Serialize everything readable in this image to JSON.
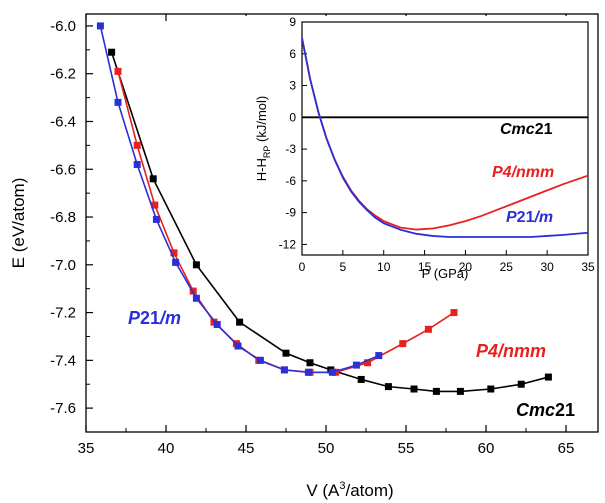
{
  "chart_data": [
    {
      "type": "line",
      "title": "",
      "xlabel": "V (A",
      "xlabel_sup": "3",
      "xlabel_tail": "/atom)",
      "ylabel": "E (eV/atom)",
      "xlim": [
        35,
        67
      ],
      "ylim": [
        -7.7,
        -5.95
      ],
      "xticks": [
        35,
        40,
        45,
        50,
        55,
        60,
        65
      ],
      "yticks": [
        -6.0,
        -6.2,
        -6.4,
        -6.6,
        -6.8,
        -7.0,
        -7.2,
        -7.4,
        -7.6
      ],
      "ytick_labels": [
        "-6.0",
        "-6.2",
        "-6.4",
        "-6.6",
        "-6.8",
        "-7.0",
        "-7.2",
        "-7.4",
        "-7.6"
      ],
      "series": [
        {
          "name": "Cmc21",
          "label_parts": [
            "Cmc",
            "21"
          ],
          "color": "#000000",
          "x": [
            36.6,
            39.2,
            41.9,
            44.6,
            47.5,
            49.0,
            50.3,
            52.2,
            53.9,
            55.5,
            56.9,
            58.4,
            60.3,
            62.2,
            63.9
          ],
          "y": [
            -6.11,
            -6.64,
            -7.0,
            -7.24,
            -7.37,
            -7.41,
            -7.44,
            -7.48,
            -7.51,
            -7.52,
            -7.53,
            -7.53,
            -7.52,
            -7.5,
            -7.47
          ]
        },
        {
          "name": "P4/nmm",
          "label_parts": [
            "P4/nmm"
          ],
          "color": "#e8211f",
          "x": [
            37.0,
            38.2,
            39.3,
            40.5,
            41.7,
            43.0,
            44.4,
            45.8,
            47.4,
            49.0,
            50.6,
            52.6,
            54.8,
            56.4,
            58.0
          ],
          "y": [
            -6.19,
            -6.5,
            -6.75,
            -6.95,
            -7.11,
            -7.24,
            -7.33,
            -7.4,
            -7.44,
            -7.45,
            -7.45,
            -7.41,
            -7.33,
            -7.27,
            -7.2
          ]
        },
        {
          "name": "P21/m",
          "label_parts": [
            "P",
            "21",
            "/m"
          ],
          "color": "#2b2fd8",
          "x": [
            35.9,
            37.0,
            38.2,
            39.4,
            40.6,
            41.9,
            43.2,
            44.5,
            45.9,
            47.4,
            48.9,
            50.4,
            51.9,
            53.3
          ],
          "y": [
            -6.0,
            -6.32,
            -6.58,
            -6.81,
            -6.99,
            -7.14,
            -7.25,
            -7.34,
            -7.4,
            -7.44,
            -7.45,
            -7.45,
            -7.42,
            -7.38
          ]
        }
      ]
    },
    {
      "type": "line",
      "title": "",
      "xlabel": "P (GPa)",
      "ylabel": "H-H",
      "ylabel_sub": "RP",
      "ylabel_tail": " (kJ/mol)",
      "xlim": [
        0,
        35
      ],
      "ylim": [
        -13,
        9
      ],
      "xticks": [
        0,
        5,
        10,
        15,
        20,
        25,
        30,
        35
      ],
      "yticks": [
        9,
        6,
        3,
        0,
        -3,
        -6,
        -9,
        -12
      ],
      "series": [
        {
          "name": "Cmc21",
          "label_parts": [
            "Cmc",
            "21"
          ],
          "color": "#000000",
          "x": [
            0,
            35
          ],
          "y": [
            0,
            0
          ]
        },
        {
          "name": "P4/nmm",
          "label_parts": [
            "P4/nmm"
          ],
          "color": "#e8211f",
          "x": [
            0,
            1,
            2,
            3,
            4,
            5,
            6,
            7,
            8,
            9,
            10,
            12,
            14,
            16,
            18,
            20,
            22,
            24,
            26,
            28,
            30,
            32,
            35
          ],
          "y": [
            7.5,
            3.6,
            0.5,
            -2.0,
            -4.0,
            -5.6,
            -6.9,
            -7.9,
            -8.7,
            -9.3,
            -9.8,
            -10.4,
            -10.6,
            -10.5,
            -10.2,
            -9.8,
            -9.3,
            -8.7,
            -8.1,
            -7.5,
            -6.9,
            -6.3,
            -5.5
          ]
        },
        {
          "name": "P21/m",
          "label_parts": [
            "P",
            "21",
            "/m"
          ],
          "color": "#2b2fd8",
          "x": [
            0,
            1,
            2,
            3,
            4,
            5,
            6,
            7,
            8,
            9,
            10,
            12,
            14,
            16,
            18,
            20,
            22,
            24,
            26,
            28,
            30,
            32,
            35
          ],
          "y": [
            7.5,
            3.6,
            0.5,
            -2.0,
            -4.0,
            -5.7,
            -7.0,
            -8.0,
            -8.8,
            -9.5,
            -10.0,
            -10.6,
            -11.0,
            -11.2,
            -11.3,
            -11.3,
            -11.3,
            -11.3,
            -11.3,
            -11.3,
            -11.2,
            -11.1,
            -10.9
          ]
        }
      ]
    }
  ]
}
